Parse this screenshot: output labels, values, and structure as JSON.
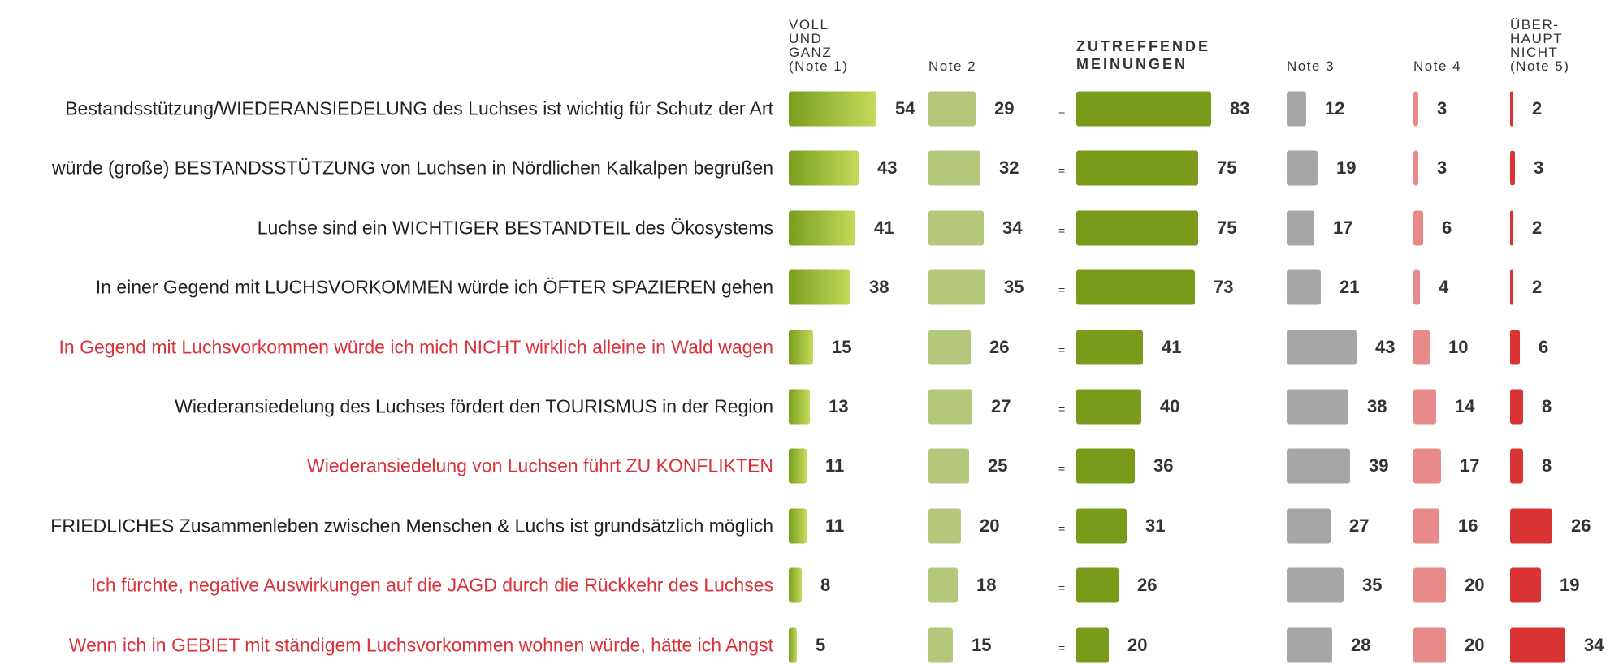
{
  "chart_data": {
    "type": "bar",
    "separator": "=",
    "categories": [
      "Bestandsstützung/WIEDERANSIEDELUNG des Luchses ist wichtig für Schutz der Art",
      "würde (große) BESTANDSSTÜTZUNG von Luchsen in Nördlichen Kalkalpen begrüßen",
      "Luchse sind ein WICHTIGER BESTANDTEIL des Ökosystems",
      "In einer Gegend mit LUCHSVORKOMMEN würde ich ÖFTER SPAZIEREN gehen",
      "In Gegend mit Luchsvorkommen würde ich mich NICHT wirklich alleine in Wald wagen",
      "Wiederansiedelung des Luchses fördert den TOURISMUS in der Region",
      "Wiederansiedelung von Luchsen führt ZU KONFLIKTEN",
      "FRIEDLICHES Zusammenleben zwischen Menschen & Luchs ist grundsätzlich möglich",
      "Ich fürchte, negative Auswirkungen auf die JAGD durch die Rückkehr des Luchses",
      "Wenn ich in GEBIET mit ständigem Luchsvorkommen wohnen würde, hätte ich Angst"
    ],
    "category_colors": [
      "#222222",
      "#222222",
      "#222222",
      "#222222",
      "#d9323a",
      "#222222",
      "#d9323a",
      "#222222",
      "#d9323a",
      "#d9323a"
    ],
    "series": [
      {
        "name": "VOLL\nUND\nGANZ\n(Note 1)",
        "color": [
          "#7a9e1e",
          "#c4da5a"
        ],
        "values": [
          54,
          43,
          41,
          38,
          15,
          13,
          11,
          11,
          8,
          5
        ]
      },
      {
        "name": "Note 2",
        "color": "#b4c77a",
        "values": [
          29,
          32,
          34,
          35,
          26,
          27,
          25,
          20,
          18,
          15
        ]
      },
      {
        "name": "ZUTREFFENDE\nMEINUNGEN",
        "color": "#7a9a1a",
        "values": [
          83,
          75,
          75,
          73,
          41,
          40,
          36,
          31,
          26,
          20
        ]
      },
      {
        "name": "Note 3",
        "color": "#a6a6a6",
        "values": [
          12,
          19,
          17,
          21,
          43,
          38,
          39,
          27,
          35,
          28
        ]
      },
      {
        "name": "Note 4",
        "color": "#e88a8a",
        "values": [
          3,
          3,
          6,
          4,
          10,
          14,
          17,
          16,
          20,
          20
        ]
      },
      {
        "name": "ÜBER-\nHAUPT\nNICHT\n(Note 5)",
        "color": "#d93333",
        "values": [
          2,
          3,
          2,
          2,
          6,
          8,
          8,
          26,
          19,
          34
        ]
      }
    ]
  }
}
